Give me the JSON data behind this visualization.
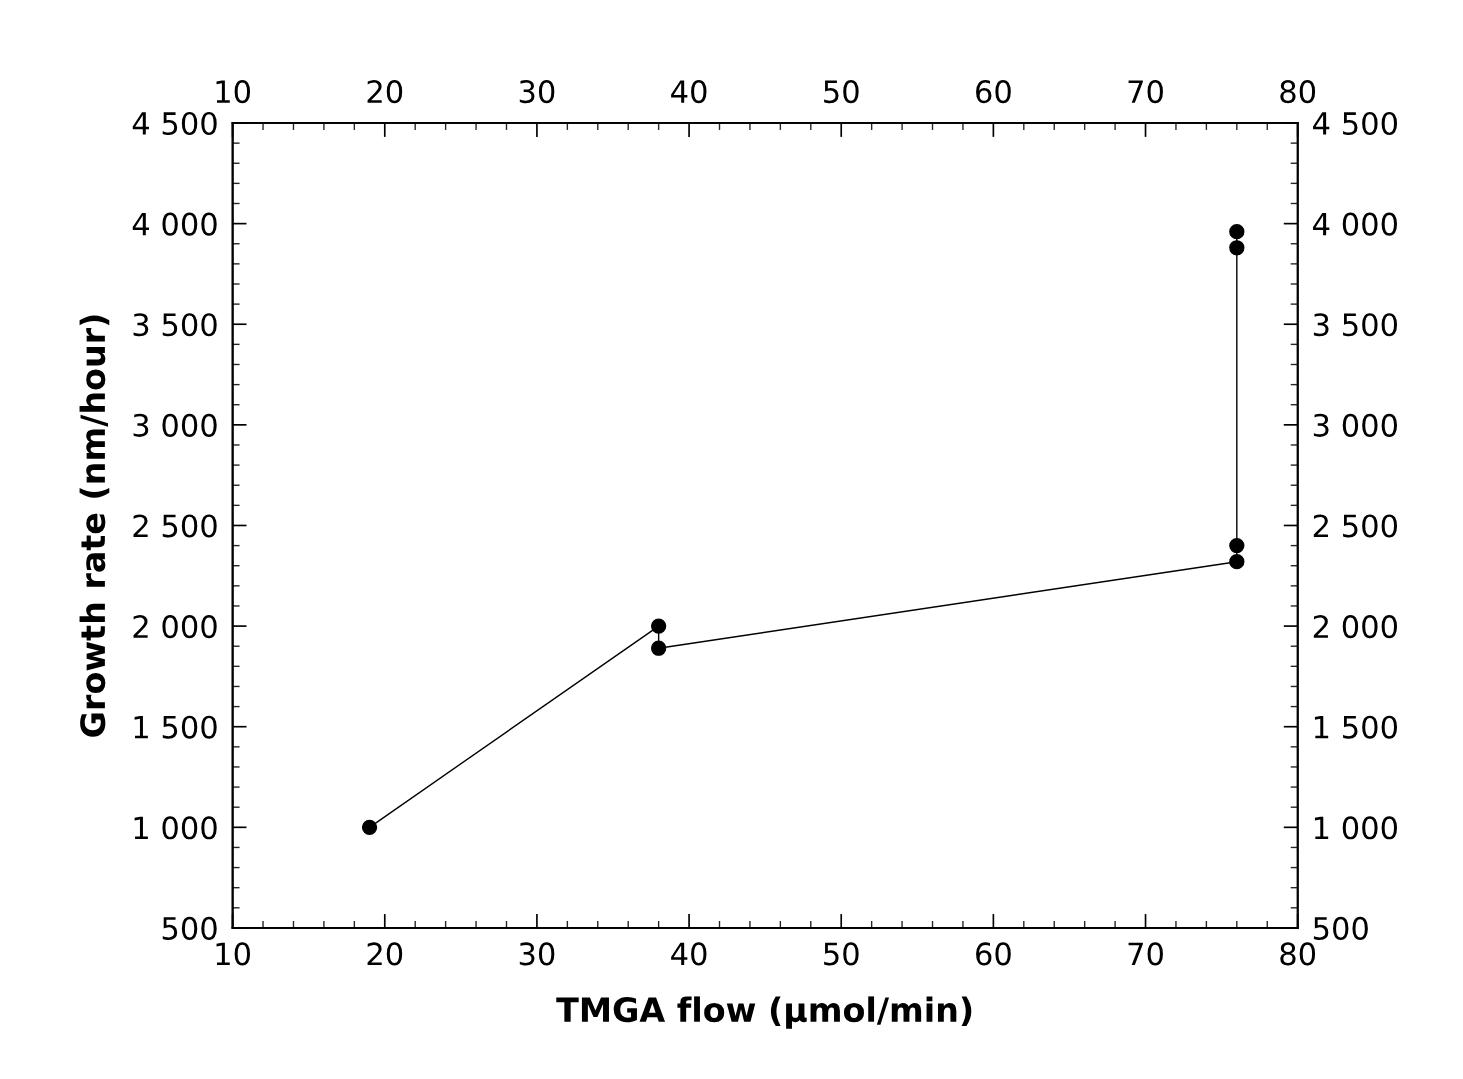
{
  "chart_data": {
    "type": "line",
    "xlabel": "TMGA flow (µmol/min)",
    "ylabel": "Growth rate (nm/hour)",
    "series": [
      {
        "color": "#000000",
        "x": [
          19,
          38,
          38,
          76,
          76,
          76,
          76
        ],
        "values": [
          1000,
          2000,
          1890,
          2320,
          2400,
          3880,
          3960
        ]
      }
    ],
    "marker": "circle",
    "line_style": "solid",
    "grid": false,
    "legend": false,
    "xlim": [
      10,
      80
    ],
    "xticks": [
      10,
      20,
      30,
      40,
      50,
      60,
      70,
      80
    ],
    "x2lim": [
      10,
      80
    ],
    "x2ticks": [
      10,
      20,
      30,
      40,
      50,
      60,
      70,
      80
    ],
    "ylim": [
      500,
      4500
    ],
    "yticks": [
      500,
      {
        "value": 1000,
        "label": "1 000"
      },
      {
        "value": 1500,
        "label": "1 500"
      },
      {
        "value": 2000,
        "label": "2 000"
      },
      {
        "value": 2500,
        "label": "2 500"
      },
      {
        "value": 3000,
        "label": "3 000"
      },
      {
        "value": 3500,
        "label": "3 500"
      },
      {
        "value": 4000,
        "label": "4 000"
      },
      {
        "value": 4500,
        "label": "4 500"
      }
    ],
    "y2lim": [
      500,
      4500
    ],
    "y2ticks": [
      500,
      {
        "value": 1000,
        "label": "1 000"
      },
      {
        "value": 1500,
        "label": "1 500"
      },
      {
        "value": 2000,
        "label": "2 000"
      },
      {
        "value": 2500,
        "label": "2 500"
      },
      {
        "value": 3000,
        "label": "3 000"
      },
      {
        "value": 3500,
        "label": "3 500"
      },
      {
        "value": 4000,
        "label": "4 000"
      },
      {
        "value": 4500,
        "label": "4 500"
      }
    ]
  }
}
